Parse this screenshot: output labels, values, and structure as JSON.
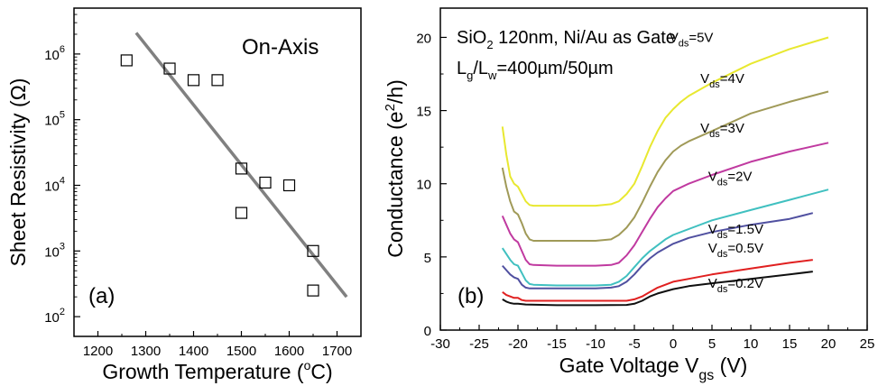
{
  "chart_data": [
    {
      "type": "scatter",
      "panel_label": "(a)",
      "annotation": "On-Axis",
      "xlabel": "Growth Temperature (°C)",
      "ylabel": "Sheet Resistivity (Ω)",
      "xlim": [
        1150,
        1750
      ],
      "ylim": [
        50,
        5000000
      ],
      "yscale": "log",
      "xticks": [
        1200,
        1300,
        1400,
        1500,
        1600,
        1700
      ],
      "yticks": [
        {
          "value": 100,
          "exp": "2"
        },
        {
          "value": 1000,
          "exp": "3"
        },
        {
          "value": 10000,
          "exp": "4"
        },
        {
          "value": 100000,
          "exp": "5"
        },
        {
          "value": 1000000,
          "exp": "6"
        }
      ],
      "grid": false,
      "points": [
        {
          "x": 1260,
          "y": 800000
        },
        {
          "x": 1350,
          "y": 600000
        },
        {
          "x": 1400,
          "y": 400000
        },
        {
          "x": 1450,
          "y": 400000
        },
        {
          "x": 1500,
          "y": 18000
        },
        {
          "x": 1500,
          "y": 3800
        },
        {
          "x": 1550,
          "y": 11000
        },
        {
          "x": 1600,
          "y": 10000
        },
        {
          "x": 1650,
          "y": 1000
        },
        {
          "x": 1650,
          "y": 250
        }
      ],
      "fit_line": {
        "x": [
          1280,
          1720
        ],
        "y": [
          2100000,
          200
        ]
      },
      "colors": {
        "marker": "#000000",
        "fit": "#808080"
      }
    },
    {
      "type": "line",
      "panel_label": "(b)",
      "annotation_line1": "SiO2 120nm, Ni/Au as Gate",
      "annotation_line2": "Lg/Lw=400µm/50µm",
      "xlabel": "Gate Voltage Vgs (V)",
      "ylabel": "Conductance (e2/h)",
      "xlim": [
        -30,
        25
      ],
      "ylim": [
        0,
        22
      ],
      "xticks": [
        -30,
        -25,
        -20,
        -15,
        -10,
        -5,
        0,
        5,
        10,
        15,
        20,
        25
      ],
      "yticks": [
        0,
        5,
        10,
        15,
        20
      ],
      "grid": false,
      "series": [
        {
          "name": "Vds=5V",
          "label_sub": "ds",
          "label_rest": "=5V",
          "label_x": -0.5,
          "label_y": 19.7,
          "color": "#e8e830",
          "points": [
            [
              -22,
              13.9
            ],
            [
              -21.5,
              12
            ],
            [
              -21,
              10.5
            ],
            [
              -20.5,
              10
            ],
            [
              -20,
              9.8
            ],
            [
              -19.5,
              9.3
            ],
            [
              -19,
              8.8
            ],
            [
              -18.5,
              8.55
            ],
            [
              -18,
              8.5
            ],
            [
              -15,
              8.5
            ],
            [
              -10,
              8.5
            ],
            [
              -8,
              8.6
            ],
            [
              -7,
              8.8
            ],
            [
              -6,
              9.3
            ],
            [
              -5,
              10
            ],
            [
              -4,
              11.2
            ],
            [
              -3,
              12.5
            ],
            [
              -2,
              13.6
            ],
            [
              -1,
              14.5
            ],
            [
              0,
              15.1
            ],
            [
              1,
              15.6
            ],
            [
              2,
              16
            ],
            [
              5,
              16.9
            ],
            [
              10,
              18.2
            ],
            [
              15,
              19.2
            ],
            [
              20,
              20
            ]
          ]
        },
        {
          "name": "Vds=4V",
          "label_sub": "ds",
          "label_rest": "=4V",
          "label_x": 3.5,
          "label_y": 16.9,
          "color": "#a09a58",
          "points": [
            [
              -22,
              11.1
            ],
            [
              -21.5,
              9.8
            ],
            [
              -21,
              8.8
            ],
            [
              -20.5,
              8.1
            ],
            [
              -20,
              7.9
            ],
            [
              -19.5,
              7.3
            ],
            [
              -19,
              6.6
            ],
            [
              -18.5,
              6.2
            ],
            [
              -18,
              6.1
            ],
            [
              -15,
              6.1
            ],
            [
              -10,
              6.1
            ],
            [
              -8,
              6.2
            ],
            [
              -7,
              6.5
            ],
            [
              -6,
              7
            ],
            [
              -5,
              7.7
            ],
            [
              -4,
              8.7
            ],
            [
              -3,
              9.8
            ],
            [
              -2,
              10.8
            ],
            [
              -1,
              11.6
            ],
            [
              0,
              12.2
            ],
            [
              1,
              12.6
            ],
            [
              2,
              12.9
            ],
            [
              5,
              13.6
            ],
            [
              10,
              14.8
            ],
            [
              15,
              15.6
            ],
            [
              20,
              16.3
            ]
          ]
        },
        {
          "name": "Vds=3V",
          "label_sub": "ds",
          "label_rest": "=3V",
          "label_x": 3.5,
          "label_y": 13.5,
          "color": "#c03aa0",
          "points": [
            [
              -22,
              7.8
            ],
            [
              -21.5,
              7.2
            ],
            [
              -21,
              6.6
            ],
            [
              -20.5,
              6.2
            ],
            [
              -20,
              6
            ],
            [
              -19.5,
              5.4
            ],
            [
              -19,
              4.8
            ],
            [
              -18.5,
              4.5
            ],
            [
              -18,
              4.45
            ],
            [
              -15,
              4.4
            ],
            [
              -10,
              4.4
            ],
            [
              -8,
              4.45
            ],
            [
              -7,
              4.6
            ],
            [
              -6,
              5.1
            ],
            [
              -5,
              5.8
            ],
            [
              -4,
              6.7
            ],
            [
              -3,
              7.6
            ],
            [
              -2,
              8.4
            ],
            [
              -1,
              9
            ],
            [
              0,
              9.5
            ],
            [
              2,
              10
            ],
            [
              5,
              10.6
            ],
            [
              10,
              11.5
            ],
            [
              15,
              12.2
            ],
            [
              20,
              12.8
            ]
          ]
        },
        {
          "name": "Vds=2V",
          "label_sub": "ds",
          "label_rest": "=2V",
          "label_x": 4.5,
          "label_y": 10.2,
          "color": "#40c0c0",
          "points": [
            [
              -22,
              5.6
            ],
            [
              -21.5,
              5.2
            ],
            [
              -21,
              4.8
            ],
            [
              -20.5,
              4.5
            ],
            [
              -20,
              4.4
            ],
            [
              -19.5,
              3.9
            ],
            [
              -19,
              3.4
            ],
            [
              -18.5,
              3.15
            ],
            [
              -18,
              3.1
            ],
            [
              -15,
              3.05
            ],
            [
              -10,
              3.05
            ],
            [
              -8,
              3.1
            ],
            [
              -7,
              3.3
            ],
            [
              -6,
              3.7
            ],
            [
              -5,
              4.3
            ],
            [
              -4,
              4.9
            ],
            [
              -3,
              5.4
            ],
            [
              -2,
              5.8
            ],
            [
              -1,
              6.2
            ],
            [
              0,
              6.5
            ],
            [
              2,
              6.9
            ],
            [
              5,
              7.5
            ],
            [
              10,
              8.2
            ],
            [
              15,
              8.9
            ],
            [
              20,
              9.6
            ]
          ]
        },
        {
          "name": "Vds=1.5V",
          "label_sub": "ds",
          "label_rest": "=1.5V",
          "label_x": 4.5,
          "label_y": 6.6,
          "color": "#5050a0",
          "points": [
            [
              -22,
              4.4
            ],
            [
              -21.5,
              4.1
            ],
            [
              -21,
              3.8
            ],
            [
              -20.5,
              3.6
            ],
            [
              -20,
              3.5
            ],
            [
              -19.5,
              3.1
            ],
            [
              -19,
              2.9
            ],
            [
              -18.5,
              2.85
            ],
            [
              -18,
              2.85
            ],
            [
              -15,
              2.85
            ],
            [
              -10,
              2.85
            ],
            [
              -8,
              2.9
            ],
            [
              -7,
              3
            ],
            [
              -6,
              3.3
            ],
            [
              -5,
              3.8
            ],
            [
              -4,
              4.4
            ],
            [
              -3,
              4.9
            ],
            [
              -2,
              5.3
            ],
            [
              -1,
              5.6
            ],
            [
              0,
              5.9
            ],
            [
              2,
              6.3
            ],
            [
              5,
              6.7
            ],
            [
              10,
              7.2
            ],
            [
              15,
              7.6
            ],
            [
              18,
              8
            ]
          ]
        },
        {
          "name": "Vds=0.5V",
          "label_sub": "ds",
          "label_rest": "=0.5V",
          "label_x": 4.5,
          "label_y": 5.3,
          "color": "#e02020",
          "points": [
            [
              -22,
              2.6
            ],
            [
              -21.5,
              2.4
            ],
            [
              -21,
              2.3
            ],
            [
              -20.5,
              2.2
            ],
            [
              -20,
              2.2
            ],
            [
              -19.5,
              2.05
            ],
            [
              -19,
              2
            ],
            [
              -15,
              2
            ],
            [
              -10,
              2
            ],
            [
              -6,
              2
            ],
            [
              -5,
              2.1
            ],
            [
              -4,
              2.3
            ],
            [
              -3,
              2.6
            ],
            [
              -2,
              2.9
            ],
            [
              -1,
              3.1
            ],
            [
              0,
              3.3
            ],
            [
              2,
              3.5
            ],
            [
              5,
              3.8
            ],
            [
              10,
              4.2
            ],
            [
              15,
              4.6
            ],
            [
              18,
              4.8
            ]
          ]
        },
        {
          "name": "Vds=0.2V",
          "label_sub": "ds",
          "label_rest": "=0.2V",
          "label_x": 4.5,
          "label_y": 2.9,
          "color": "#101010",
          "points": [
            [
              -22,
              2.1
            ],
            [
              -21.5,
              1.95
            ],
            [
              -21,
              1.85
            ],
            [
              -20.5,
              1.8
            ],
            [
              -20,
              1.8
            ],
            [
              -19,
              1.75
            ],
            [
              -15,
              1.7
            ],
            [
              -10,
              1.7
            ],
            [
              -6,
              1.72
            ],
            [
              -5,
              1.8
            ],
            [
              -4,
              2
            ],
            [
              -3,
              2.3
            ],
            [
              -2,
              2.5
            ],
            [
              -1,
              2.65
            ],
            [
              0,
              2.8
            ],
            [
              2,
              3
            ],
            [
              5,
              3.2
            ],
            [
              10,
              3.5
            ],
            [
              15,
              3.8
            ],
            [
              18,
              4
            ]
          ]
        }
      ]
    }
  ]
}
